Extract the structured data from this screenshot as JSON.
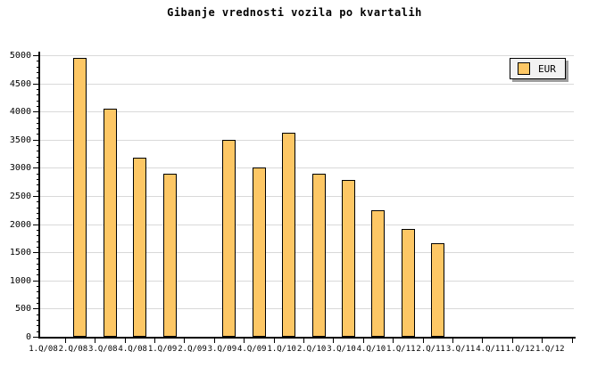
{
  "title": "Gibanje vrednosti vozila po kvartalih",
  "legend": {
    "label": "EUR"
  },
  "colors": {
    "background": "#FFFFFF",
    "bar_fill": "#FDC765",
    "bar_border": "#000000",
    "grid_line": "#D9D9D9",
    "axis": "#000000",
    "text": "#000000",
    "legend_background": "#F2F2F2",
    "legend_border": "#000000",
    "legend_shadow": "#9E9E9E"
  },
  "y_axis": {
    "min": 0,
    "max": 5000,
    "major_step": 500,
    "minor_step": 100,
    "tick_labels": [
      "0",
      "500",
      "1000",
      "1500",
      "2000",
      "2500",
      "3000",
      "3500",
      "4000",
      "4500",
      "5000"
    ]
  },
  "x_axis": {
    "tick_labels": [
      "1.Q/08",
      "2.Q/08",
      "3.Q/08",
      "4.Q/08",
      "1.Q/09",
      "2.Q/09",
      "3.Q/09",
      "4.Q/09",
      "1.Q/10",
      "2.Q/10",
      "3.Q/10",
      "4.Q/10",
      "1.Q/11",
      "2.Q/11",
      "3.Q/11",
      "4.Q/11",
      "1.Q/12",
      "1.Q/12"
    ]
  },
  "chart_data": {
    "type": "bar",
    "title": "Gibanje vrednosti vozila po kvartalih",
    "categories": [
      "1.Q/08",
      "2.Q/08",
      "3.Q/08",
      "4.Q/08",
      "1.Q/09",
      "2.Q/09",
      "3.Q/09",
      "4.Q/09",
      "1.Q/10",
      "2.Q/10",
      "3.Q/10",
      "4.Q/10",
      "1.Q/11",
      "2.Q/11",
      "3.Q/11",
      "4.Q/11",
      "1.Q/12",
      "1.Q/12"
    ],
    "series": [
      {
        "name": "EUR",
        "values": [
          null,
          4950,
          4050,
          3180,
          2900,
          null,
          3500,
          3000,
          3630,
          2900,
          2780,
          2250,
          1920,
          1660,
          null,
          null,
          null,
          null
        ]
      }
    ],
    "xlabel": "",
    "ylabel": "",
    "ylim": [
      0,
      5000
    ],
    "ytick_step": 500,
    "y_minor_tick_step": 100,
    "grid": "horizontal-major",
    "legend_position": "top-right",
    "bar_color": "#FDC765"
  }
}
